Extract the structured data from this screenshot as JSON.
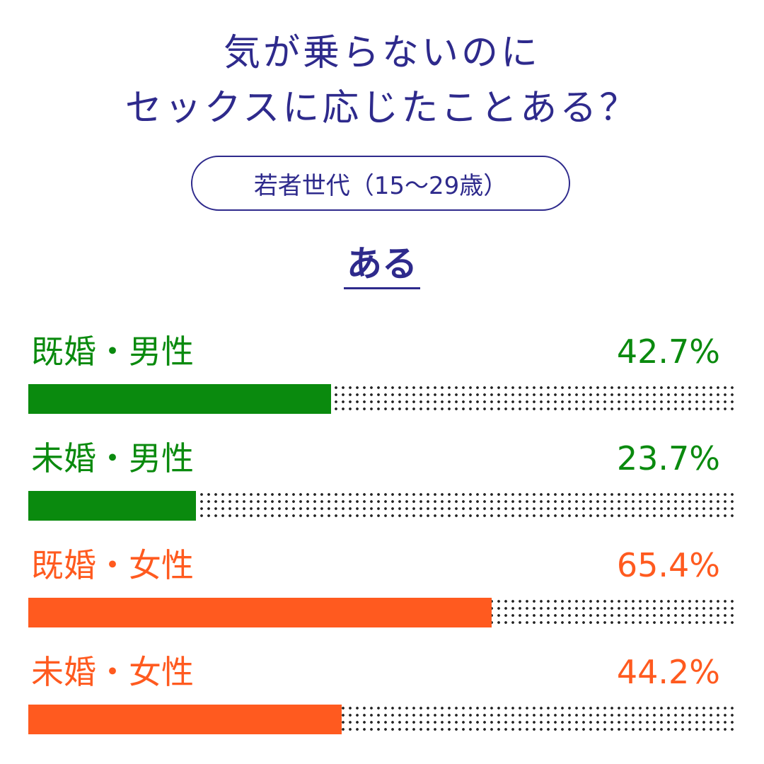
{
  "title": {
    "line1": "気が乗らないのに",
    "line2": "セックスに応じたことある？"
  },
  "subtitle": "若者世代（15～29歳）",
  "answer_label": "ある",
  "colors": {
    "title": "#2e2a8c",
    "male": "#0a8a0e",
    "female": "#ff5a1f"
  },
  "chart_data": {
    "type": "bar",
    "orientation": "horizontal",
    "title": "気が乗らないのにセックスに応じたことある？",
    "subtitle": "若者世代（15～29歳）",
    "answer": "ある",
    "xlim": [
      0,
      100
    ],
    "categories": [
      "既婚・男性",
      "未婚・男性",
      "既婚・女性",
      "未婚・女性"
    ],
    "values": [
      42.7,
      23.7,
      65.4,
      44.2
    ],
    "labels": [
      "42.7%",
      "23.7%",
      "65.4%",
      "44.2%"
    ],
    "bar_colors": [
      "#0a8a0e",
      "#0a8a0e",
      "#ff5a1f",
      "#ff5a1f"
    ]
  }
}
